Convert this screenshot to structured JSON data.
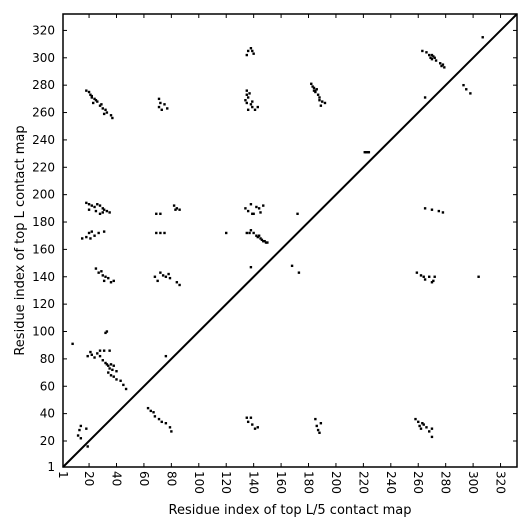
{
  "chart_data": {
    "type": "scatter",
    "title": "",
    "xlabel": "Residue index of top L/5 contact map",
    "ylabel": "Residue index of top L contact map",
    "xlim": [
      1,
      332
    ],
    "ylim": [
      1,
      332
    ],
    "xticks": [
      1,
      20,
      40,
      60,
      80,
      100,
      120,
      140,
      160,
      180,
      200,
      220,
      240,
      260,
      280,
      300,
      320
    ],
    "yticks": [
      1,
      20,
      40,
      60,
      80,
      100,
      120,
      140,
      160,
      180,
      200,
      220,
      240,
      260,
      280,
      300,
      320
    ],
    "x_tick_rotation": -90,
    "grid": false,
    "legend": "none",
    "marker_color": "#000000",
    "diagonal": {
      "from": [
        1,
        1
      ],
      "to": [
        332,
        332
      ],
      "color": "#000000"
    },
    "series": [
      {
        "marker": "square",
        "points": [
          [
            18,
            276
          ],
          [
            20,
            275
          ],
          [
            21,
            273
          ],
          [
            22,
            271
          ],
          [
            24,
            270
          ],
          [
            26,
            268
          ],
          [
            23,
            267
          ],
          [
            28,
            265
          ],
          [
            30,
            263
          ],
          [
            32,
            262
          ],
          [
            33,
            260
          ],
          [
            31,
            259
          ],
          [
            36,
            258
          ],
          [
            37,
            256
          ],
          [
            22,
            272
          ],
          [
            25,
            269
          ],
          [
            29,
            266
          ],
          [
            71,
            270
          ],
          [
            72,
            267
          ],
          [
            75,
            266
          ],
          [
            71,
            264
          ],
          [
            77,
            263
          ],
          [
            73,
            262
          ],
          [
            135,
            276
          ],
          [
            135,
            273
          ],
          [
            136,
            271
          ],
          [
            134,
            269
          ],
          [
            135,
            267
          ],
          [
            138,
            266
          ],
          [
            139,
            264
          ],
          [
            136,
            262
          ],
          [
            141,
            262
          ],
          [
            143,
            264
          ],
          [
            139,
            268
          ],
          [
            137,
            274
          ],
          [
            136,
            305
          ],
          [
            138,
            307
          ],
          [
            140,
            303
          ],
          [
            139,
            305
          ],
          [
            135,
            302
          ],
          [
            182,
            281
          ],
          [
            183,
            279
          ],
          [
            184,
            278
          ],
          [
            186,
            277
          ],
          [
            184,
            276
          ],
          [
            185,
            276
          ],
          [
            187,
            273
          ],
          [
            188,
            271
          ],
          [
            188,
            269
          ],
          [
            190,
            268
          ],
          [
            192,
            267
          ],
          [
            189,
            265
          ],
          [
            185,
            275
          ],
          [
            221,
            231
          ],
          [
            222,
            231
          ],
          [
            223,
            231
          ],
          [
            224,
            231
          ],
          [
            263,
            305
          ],
          [
            266,
            304
          ],
          [
            268,
            302
          ],
          [
            270,
            302
          ],
          [
            271,
            301
          ],
          [
            272,
            300
          ],
          [
            270,
            299
          ],
          [
            273,
            298
          ],
          [
            276,
            296
          ],
          [
            277,
            294
          ],
          [
            279,
            293
          ],
          [
            278,
            295
          ],
          [
            269,
            300
          ],
          [
            265,
            271
          ],
          [
            293,
            280
          ],
          [
            295,
            277
          ],
          [
            298,
            274
          ],
          [
            307,
            315
          ],
          [
            18,
            194
          ],
          [
            20,
            193
          ],
          [
            22,
            192
          ],
          [
            24,
            191
          ],
          [
            26,
            193
          ],
          [
            28,
            192
          ],
          [
            30,
            190
          ],
          [
            31,
            189
          ],
          [
            33,
            188
          ],
          [
            35,
            187
          ],
          [
            20,
            189
          ],
          [
            25,
            188
          ],
          [
            28,
            186
          ],
          [
            30,
            187
          ],
          [
            69,
            186
          ],
          [
            72,
            186
          ],
          [
            82,
            192
          ],
          [
            84,
            190
          ],
          [
            86,
            189
          ],
          [
            83,
            189
          ],
          [
            134,
            190
          ],
          [
            136,
            188
          ],
          [
            138,
            193
          ],
          [
            139,
            186
          ],
          [
            142,
            191
          ],
          [
            144,
            190
          ],
          [
            145,
            187
          ],
          [
            147,
            192
          ],
          [
            140,
            186
          ],
          [
            172,
            186
          ],
          [
            265,
            190
          ],
          [
            270,
            189
          ],
          [
            275,
            188
          ],
          [
            278,
            187
          ],
          [
            15,
            168
          ],
          [
            18,
            169
          ],
          [
            20,
            172
          ],
          [
            22,
            173
          ],
          [
            24,
            170
          ],
          [
            27,
            172
          ],
          [
            31,
            173
          ],
          [
            21,
            168
          ],
          [
            69,
            172
          ],
          [
            72,
            172
          ],
          [
            75,
            172
          ],
          [
            120,
            172
          ],
          [
            135,
            172
          ],
          [
            137,
            172
          ],
          [
            140,
            172
          ],
          [
            142,
            170
          ],
          [
            143,
            169
          ],
          [
            145,
            168
          ],
          [
            146,
            167
          ],
          [
            147,
            166
          ],
          [
            148,
            166
          ],
          [
            149,
            165
          ],
          [
            150,
            165
          ],
          [
            144,
            170
          ],
          [
            138,
            174
          ],
          [
            138,
            147
          ],
          [
            168,
            148
          ],
          [
            173,
            143
          ],
          [
            25,
            146
          ],
          [
            27,
            143
          ],
          [
            30,
            141
          ],
          [
            32,
            140
          ],
          [
            34,
            139
          ],
          [
            31,
            137
          ],
          [
            36,
            136
          ],
          [
            38,
            137
          ],
          [
            29,
            144
          ],
          [
            68,
            140
          ],
          [
            70,
            137
          ],
          [
            72,
            143
          ],
          [
            74,
            141
          ],
          [
            76,
            140
          ],
          [
            78,
            142
          ],
          [
            79,
            139
          ],
          [
            84,
            136
          ],
          [
            86,
            134
          ],
          [
            259,
            143
          ],
          [
            262,
            141
          ],
          [
            264,
            140
          ],
          [
            265,
            138
          ],
          [
            268,
            140
          ],
          [
            270,
            136
          ],
          [
            272,
            140
          ],
          [
            271,
            137
          ],
          [
            304,
            140
          ],
          [
            32,
            99
          ],
          [
            33,
            100
          ],
          [
            8,
            91
          ],
          [
            76,
            82
          ],
          [
            19,
            82
          ],
          [
            21,
            85
          ],
          [
            22,
            83
          ],
          [
            24,
            81
          ],
          [
            26,
            84
          ],
          [
            28,
            82
          ],
          [
            30,
            79
          ],
          [
            28,
            86
          ],
          [
            32,
            77
          ],
          [
            33,
            76
          ],
          [
            34,
            75
          ],
          [
            35,
            73
          ],
          [
            37,
            72
          ],
          [
            36,
            76
          ],
          [
            38,
            75
          ],
          [
            40,
            71
          ],
          [
            34,
            70
          ],
          [
            36,
            68
          ],
          [
            38,
            67
          ],
          [
            40,
            65
          ],
          [
            43,
            64
          ],
          [
            45,
            61
          ],
          [
            47,
            58
          ],
          [
            35,
            86
          ],
          [
            31,
            86
          ],
          [
            63,
            44
          ],
          [
            65,
            42
          ],
          [
            67,
            41
          ],
          [
            68,
            38
          ],
          [
            71,
            36
          ],
          [
            73,
            34
          ],
          [
            76,
            33
          ],
          [
            79,
            30
          ],
          [
            80,
            27
          ],
          [
            12,
            24
          ],
          [
            14,
            22
          ],
          [
            13,
            28
          ],
          [
            14,
            31
          ],
          [
            18,
            29
          ],
          [
            19,
            16
          ],
          [
            135,
            37
          ],
          [
            136,
            34
          ],
          [
            138,
            37
          ],
          [
            139,
            32
          ],
          [
            141,
            29
          ],
          [
            143,
            30
          ],
          [
            185,
            36
          ],
          [
            186,
            31
          ],
          [
            187,
            28
          ],
          [
            188,
            26
          ],
          [
            189,
            33
          ],
          [
            258,
            36
          ],
          [
            260,
            34
          ],
          [
            261,
            31
          ],
          [
            262,
            29
          ],
          [
            263,
            33
          ],
          [
            264,
            32
          ],
          [
            266,
            30
          ],
          [
            268,
            27
          ],
          [
            270,
            23
          ],
          [
            270,
            29
          ]
        ]
      }
    ]
  }
}
